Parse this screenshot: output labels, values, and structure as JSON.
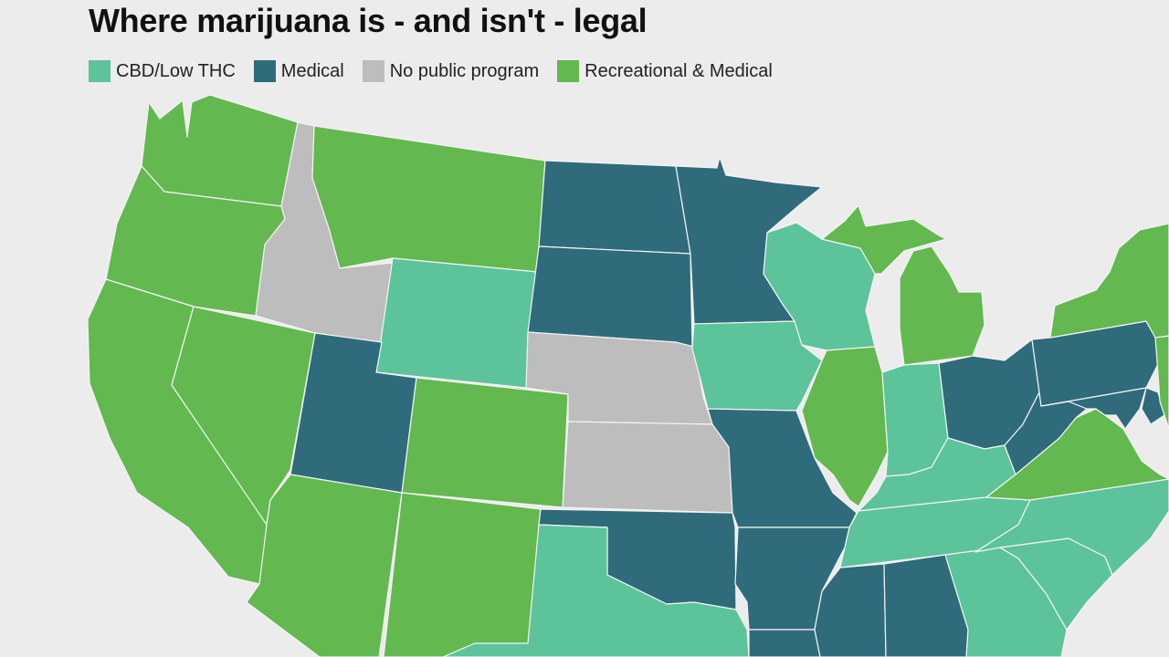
{
  "title": "Where marijuana is - and isn't - legal",
  "legend": [
    {
      "label": "CBD/Low THC",
      "category": "cbd",
      "color": "#5cc39b"
    },
    {
      "label": "Medical",
      "category": "medical",
      "color": "#2f6b7b"
    },
    {
      "label": "No public program",
      "category": "none",
      "color": "#bdbdbd"
    },
    {
      "label": "Recreational & Medical",
      "category": "rec",
      "color": "#63b84f"
    }
  ],
  "map": {
    "background": "#ececec",
    "states": [
      {
        "name": "washington",
        "status": "rec"
      },
      {
        "name": "oregon",
        "status": "rec"
      },
      {
        "name": "california",
        "status": "rec"
      },
      {
        "name": "nevada",
        "status": "rec"
      },
      {
        "name": "idaho",
        "status": "none"
      },
      {
        "name": "montana",
        "status": "rec"
      },
      {
        "name": "wyoming",
        "status": "cbd"
      },
      {
        "name": "utah",
        "status": "medical"
      },
      {
        "name": "colorado",
        "status": "rec"
      },
      {
        "name": "arizona",
        "status": "rec"
      },
      {
        "name": "new-mexico",
        "status": "rec"
      },
      {
        "name": "north-dakota",
        "status": "medical"
      },
      {
        "name": "south-dakota",
        "status": "medical"
      },
      {
        "name": "nebraska",
        "status": "none"
      },
      {
        "name": "kansas",
        "status": "none"
      },
      {
        "name": "oklahoma",
        "status": "medical"
      },
      {
        "name": "texas",
        "status": "cbd"
      },
      {
        "name": "minnesota",
        "status": "medical"
      },
      {
        "name": "iowa",
        "status": "cbd"
      },
      {
        "name": "missouri",
        "status": "medical"
      },
      {
        "name": "arkansas",
        "status": "medical"
      },
      {
        "name": "louisiana",
        "status": "medical"
      },
      {
        "name": "wisconsin",
        "status": "cbd"
      },
      {
        "name": "illinois",
        "status": "rec"
      },
      {
        "name": "michigan",
        "status": "rec"
      },
      {
        "name": "indiana",
        "status": "cbd"
      },
      {
        "name": "ohio",
        "status": "medical"
      },
      {
        "name": "kentucky",
        "status": "cbd"
      },
      {
        "name": "tennessee",
        "status": "cbd"
      },
      {
        "name": "mississippi",
        "status": "medical"
      },
      {
        "name": "alabama",
        "status": "medical"
      },
      {
        "name": "georgia",
        "status": "cbd"
      },
      {
        "name": "south-carolina",
        "status": "cbd"
      },
      {
        "name": "north-carolina",
        "status": "cbd"
      },
      {
        "name": "virginia",
        "status": "rec"
      },
      {
        "name": "west-virginia",
        "status": "medical"
      },
      {
        "name": "pennsylvania",
        "status": "medical"
      },
      {
        "name": "maryland",
        "status": "medical"
      },
      {
        "name": "delaware",
        "status": "medical"
      },
      {
        "name": "new-jersey",
        "status": "rec"
      },
      {
        "name": "new-york",
        "status": "rec"
      }
    ]
  }
}
